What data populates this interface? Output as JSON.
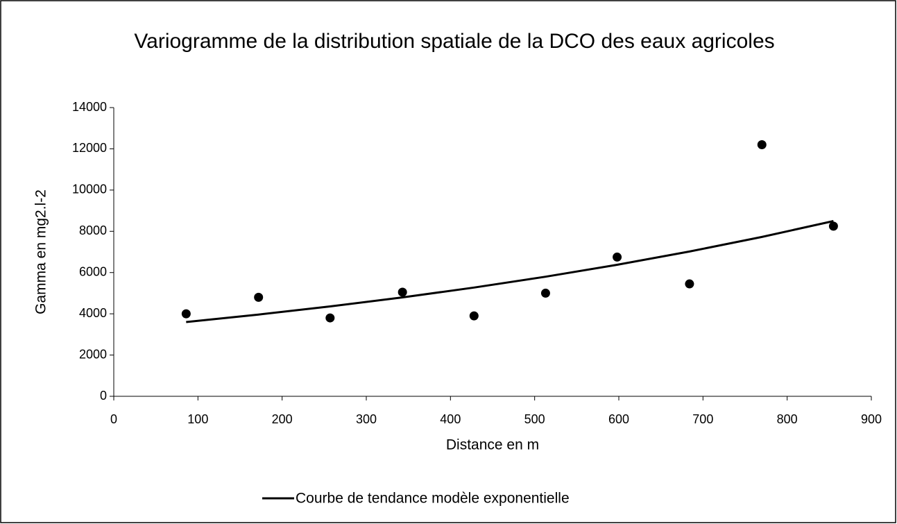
{
  "chart_data": {
    "type": "scatter",
    "title": "Variogramme de la distribution spatiale de la DCO des eaux agricoles",
    "xlabel": "Distance en m",
    "ylabel": "Gamma en mg2.l-2",
    "xlim": [
      0,
      900
    ],
    "xticks": [
      0,
      100,
      200,
      300,
      400,
      500,
      600,
      700,
      800,
      900
    ],
    "ylim": [
      0,
      14000
    ],
    "yticks": [
      0,
      2000,
      4000,
      6000,
      8000,
      10000,
      12000,
      14000
    ],
    "grid": false,
    "legend": "bottom",
    "series": [
      {
        "mode": "markers",
        "color": "#000000",
        "x": [
          86,
          172,
          257,
          343,
          428,
          513,
          598,
          684,
          770,
          855
        ],
        "values": [
          4000,
          4800,
          3800,
          5050,
          3900,
          5000,
          6750,
          5450,
          12200,
          8250
        ]
      },
      {
        "name": "Courbe de tendance modèle exponentielle",
        "mode": "line",
        "color": "#000000",
        "x": [
          86,
          172,
          257,
          343,
          428,
          513,
          598,
          684,
          770,
          855
        ],
        "values": [
          3600,
          3963,
          4357,
          4797,
          5274,
          5800,
          6377,
          7020,
          7728,
          8497
        ]
      }
    ]
  }
}
